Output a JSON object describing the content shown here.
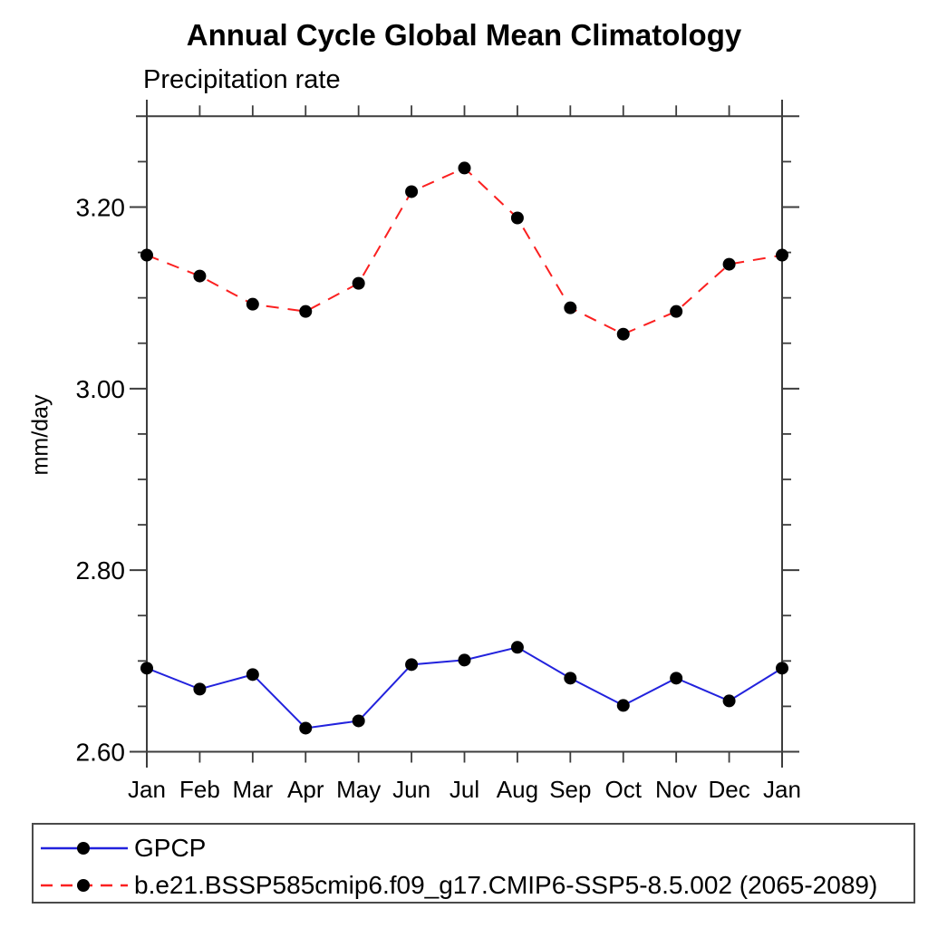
{
  "page": {
    "background_color": "#ffffff",
    "text_color": "#000000",
    "axis_color": "#3d3d3d"
  },
  "chart_data": {
    "type": "line",
    "title": "Annual Cycle Global Mean Climatology",
    "subtitle": "Precipitation rate",
    "xlabel": "",
    "ylabel": "mm/day",
    "categories": [
      "Jan",
      "Feb",
      "Mar",
      "Apr",
      "May",
      "Jun",
      "Jul",
      "Aug",
      "Sep",
      "Oct",
      "Nov",
      "Dec",
      "Jan"
    ],
    "series": [
      {
        "name": "GPCP",
        "color": "#2222dd",
        "line_style": "solid",
        "marker": "black-filled-circle",
        "values": [
          2.692,
          2.669,
          2.685,
          2.626,
          2.634,
          2.696,
          2.701,
          2.715,
          2.681,
          2.651,
          2.681,
          2.656,
          2.692
        ]
      },
      {
        "name": "b.e21.BSSP585cmip6.f09_g17.CMIP6-SSP5-8.5.002 (2065-2089)",
        "color": "#fb2020",
        "line_style": "dashed",
        "marker": "black-filled-circle",
        "values": [
          3.147,
          3.124,
          3.093,
          3.085,
          3.116,
          3.217,
          3.243,
          3.188,
          3.089,
          3.06,
          3.085,
          3.137,
          3.147
        ]
      }
    ],
    "ylim": [
      2.6,
      3.3
    ],
    "ytick_major": [
      2.6,
      2.8,
      3.0,
      3.2
    ],
    "ytick_labels": [
      "2.60",
      "2.80",
      "3.00",
      "3.20"
    ],
    "ytick_minor_step": 0.05,
    "marker_color": "#000000",
    "grid": false,
    "tick_direction": "out",
    "legend_position": "bottom-left-box"
  }
}
